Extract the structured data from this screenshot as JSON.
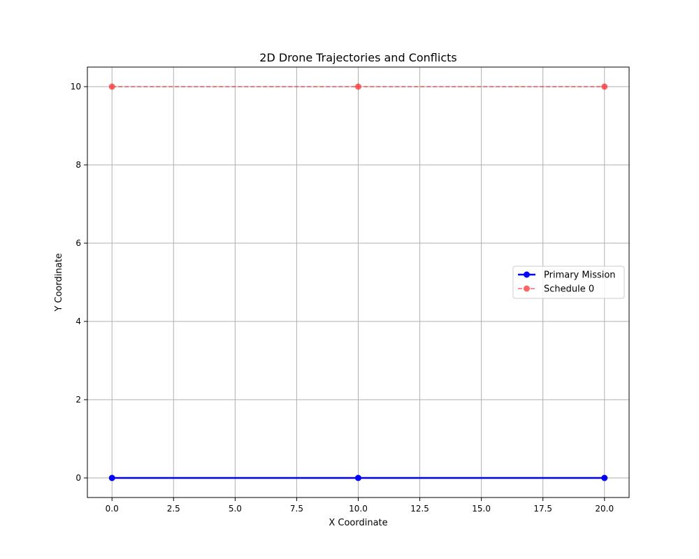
{
  "chart_data": {
    "type": "line",
    "title": "2D Drone Trajectories and Conflicts",
    "xlabel": "X Coordinate",
    "ylabel": "Y Coordinate",
    "xlim": [
      -1,
      21
    ],
    "ylim": [
      -0.5,
      10.5
    ],
    "xticks": [
      0.0,
      2.5,
      5.0,
      7.5,
      10.0,
      12.5,
      15.0,
      17.5,
      20.0
    ],
    "xtick_labels": [
      "0.0",
      "2.5",
      "5.0",
      "7.5",
      "10.0",
      "12.5",
      "15.0",
      "17.5",
      "20.0"
    ],
    "yticks": [
      0,
      2,
      4,
      6,
      8,
      10
    ],
    "ytick_labels": [
      "0",
      "2",
      "4",
      "6",
      "8",
      "10"
    ],
    "grid": true,
    "legend_position": "center-right",
    "series": [
      {
        "name": "Primary Mission",
        "x": [
          0,
          10,
          20
        ],
        "y": [
          0,
          0,
          0
        ],
        "color": "#0000ff",
        "line_style": "solid",
        "marker": "circle"
      },
      {
        "name": "Schedule 0",
        "x": [
          0,
          10,
          20
        ],
        "y": [
          10,
          10,
          10
        ],
        "color": "#ff0000",
        "line_style": "dashed",
        "marker": "circle"
      }
    ]
  }
}
